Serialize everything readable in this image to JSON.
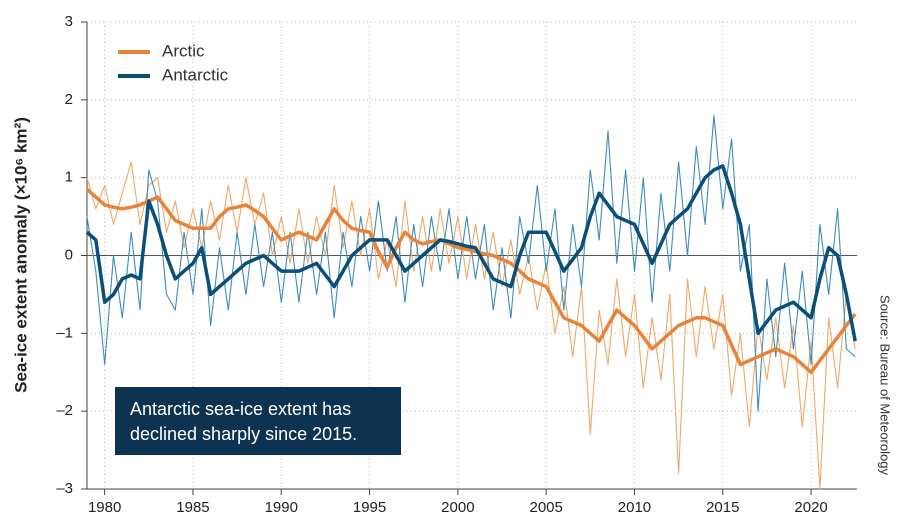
{
  "chart_data": {
    "type": "line",
    "y_label": "Sea-ice extent anomaly (×10⁶ km²)",
    "source": "Source: Bureau of Meteorology",
    "annotation": [
      "Antarctic sea-ice extent has",
      "declined sharply since 2015."
    ],
    "legend": "upper left",
    "grid": true,
    "xlim": [
      1979,
      2022.6
    ],
    "ylim": [
      -3,
      3
    ],
    "xticks": [
      1980,
      1985,
      1990,
      1995,
      2000,
      2005,
      2010,
      2015,
      2020
    ],
    "yticks": [
      {
        "value": -3,
        "label": "–3"
      },
      {
        "value": -2,
        "label": "–2"
      },
      {
        "value": -1,
        "label": "–1"
      },
      0,
      1,
      2,
      3
    ],
    "x": [
      1979,
      1979.5,
      1980,
      1980.5,
      1981,
      1981.5,
      1982,
      1982.5,
      1983,
      1983.5,
      1984,
      1984.5,
      1985,
      1985.5,
      1986,
      1986.5,
      1987,
      1987.5,
      1988,
      1988.5,
      1989,
      1989.5,
      1990,
      1990.5,
      1991,
      1991.5,
      1992,
      1992.5,
      1993,
      1993.5,
      1994,
      1994.5,
      1995,
      1995.5,
      1996,
      1996.5,
      1997,
      1997.5,
      1998,
      1998.5,
      1999,
      1999.5,
      2000,
      2000.5,
      2001,
      2001.5,
      2002,
      2002.5,
      2003,
      2003.5,
      2004,
      2004.5,
      2005,
      2005.5,
      2006,
      2006.5,
      2007,
      2007.5,
      2008,
      2008.5,
      2009,
      2009.5,
      2010,
      2010.5,
      2011,
      2011.5,
      2012,
      2012.5,
      2013,
      2013.5,
      2014,
      2014.5,
      2015,
      2015.5,
      2016,
      2016.5,
      2017,
      2017.5,
      2018,
      2018.5,
      2019,
      2019.5,
      2020,
      2020.5,
      2021,
      2021.5,
      2022,
      2022.5
    ],
    "series": [
      {
        "name": "Arctic",
        "color": "#e8833a",
        "monthly_color": "#f2a764",
        "values": [
          0.85,
          0.75,
          0.65,
          0.62,
          0.6,
          0.62,
          0.65,
          0.7,
          0.75,
          0.6,
          0.45,
          0.4,
          0.35,
          0.35,
          0.35,
          0.5,
          0.6,
          0.62,
          0.65,
          0.58,
          0.5,
          0.35,
          0.2,
          0.25,
          0.3,
          0.25,
          0.2,
          0.4,
          0.6,
          0.45,
          0.35,
          0.32,
          0.3,
          0.05,
          -0.15,
          0.1,
          0.3,
          0.2,
          0.15,
          0.18,
          0.2,
          0.15,
          0.1,
          0.08,
          0.05,
          0.02,
          0.0,
          -0.05,
          -0.1,
          -0.2,
          -0.3,
          -0.35,
          -0.4,
          -0.6,
          -0.8,
          -0.85,
          -0.9,
          -1.0,
          -1.1,
          -0.9,
          -0.7,
          -0.8,
          -0.9,
          -1.05,
          -1.2,
          -1.1,
          -1.0,
          -0.9,
          -0.85,
          -0.8,
          -0.8,
          -0.85,
          -0.9,
          -1.15,
          -1.4,
          -1.35,
          -1.3,
          -1.25,
          -1.2,
          -1.25,
          -1.3,
          -1.4,
          -1.5,
          -1.35,
          -1.2,
          -1.05,
          -0.9,
          -0.75
        ],
        "monthly": [
          1.0,
          0.6,
          0.9,
          0.4,
          0.8,
          1.2,
          0.4,
          0.9,
          1.0,
          0.3,
          0.7,
          0.1,
          0.6,
          0.1,
          0.7,
          0.2,
          0.9,
          0.3,
          1.0,
          0.4,
          0.8,
          0.0,
          0.5,
          -0.1,
          0.6,
          -0.1,
          0.5,
          0.0,
          0.9,
          0.1,
          0.7,
          0.0,
          0.6,
          -0.3,
          0.2,
          -0.4,
          0.7,
          -0.2,
          0.5,
          -0.2,
          0.6,
          -0.1,
          0.5,
          -0.3,
          0.4,
          -0.3,
          0.3,
          -0.4,
          0.2,
          -0.5,
          0.0,
          -0.7,
          -0.1,
          -1.0,
          -0.4,
          -1.3,
          -0.4,
          -2.3,
          -0.7,
          -1.4,
          -0.3,
          -1.3,
          -0.5,
          -1.7,
          -0.8,
          -1.6,
          -0.5,
          -2.8,
          -0.3,
          -1.3,
          -0.4,
          -1.2,
          -0.5,
          -1.8,
          -1.0,
          -2.2,
          -0.9,
          -1.6,
          -0.8,
          -1.7,
          -0.9,
          -2.2,
          -1.1,
          -3.0,
          -0.8,
          -1.7,
          -0.5,
          -1.2
        ]
      },
      {
        "name": "Antarctic",
        "color": "#0b4f79",
        "monthly_color": "#3b8dbf",
        "values": [
          0.3,
          0.2,
          -0.6,
          -0.5,
          -0.3,
          -0.25,
          -0.3,
          0.7,
          0.4,
          0.0,
          -0.3,
          -0.2,
          -0.1,
          0.1,
          -0.5,
          -0.4,
          -0.3,
          -0.2,
          -0.1,
          -0.05,
          0.0,
          -0.1,
          -0.2,
          -0.2,
          -0.2,
          -0.15,
          -0.1,
          -0.25,
          -0.4,
          -0.2,
          0.0,
          0.1,
          0.2,
          0.2,
          0.2,
          0.0,
          -0.2,
          -0.1,
          0.0,
          0.1,
          0.2,
          0.18,
          0.15,
          0.12,
          0.1,
          -0.1,
          -0.3,
          -0.35,
          -0.4,
          0.0,
          0.3,
          0.3,
          0.3,
          0.05,
          -0.2,
          -0.05,
          0.1,
          0.5,
          0.8,
          0.65,
          0.5,
          0.45,
          0.4,
          0.15,
          -0.1,
          0.15,
          0.4,
          0.5,
          0.6,
          0.8,
          1.0,
          1.1,
          1.15,
          0.8,
          0.4,
          -0.3,
          -1.0,
          -0.85,
          -0.7,
          -0.65,
          -0.6,
          -0.7,
          -0.8,
          -0.3,
          0.1,
          0.0,
          -0.5,
          -1.1
        ],
        "monthly": [
          0.5,
          -0.2,
          -1.4,
          0.0,
          -0.8,
          0.3,
          -0.7,
          1.1,
          0.7,
          -0.5,
          -0.7,
          0.3,
          -0.5,
          0.6,
          -0.9,
          0.1,
          -0.7,
          0.3,
          -0.5,
          0.4,
          -0.4,
          0.3,
          -0.6,
          0.3,
          -0.6,
          0.3,
          -0.5,
          0.3,
          -0.8,
          0.3,
          -0.4,
          0.5,
          -0.2,
          0.7,
          -0.2,
          0.5,
          -0.6,
          0.4,
          -0.4,
          0.5,
          -0.2,
          0.6,
          -0.3,
          0.5,
          -0.3,
          0.4,
          -0.7,
          0.1,
          -0.8,
          0.5,
          -0.1,
          0.9,
          -0.2,
          0.6,
          -0.7,
          0.4,
          -0.4,
          1.1,
          0.2,
          1.6,
          -0.1,
          1.1,
          -0.2,
          1.0,
          -0.6,
          0.8,
          -0.2,
          1.2,
          0.0,
          1.4,
          0.4,
          1.8,
          0.6,
          1.5,
          -0.2,
          0.4,
          -2.0,
          -0.3,
          -1.3,
          -0.1,
          -1.2,
          -0.2,
          -1.4,
          0.4,
          -0.5,
          0.6,
          -1.2,
          -1.3
        ]
      }
    ]
  }
}
